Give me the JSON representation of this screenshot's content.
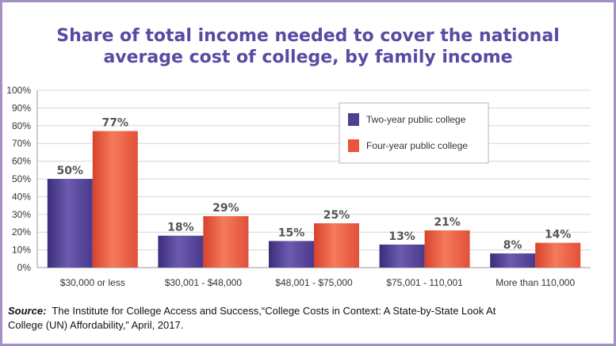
{
  "chart_data": {
    "type": "bar",
    "title_line1": "Share of total income needed to cover the national",
    "title_line2": "average cost of college, by family income",
    "categories": [
      "$30,000 or less",
      "$30,001 - $48,000",
      "$48,001 - $75,000",
      "$75,001 - 110,001",
      "More than 110,000"
    ],
    "series": [
      {
        "name": "Two-year public college",
        "values": [
          50,
          18,
          15,
          13,
          8
        ],
        "labels": [
          "50%",
          "18%",
          "15%",
          "13%",
          "8%"
        ],
        "color": "#4f3f8f"
      },
      {
        "name": "Four-year public college",
        "values": [
          77,
          29,
          25,
          21,
          14
        ],
        "labels": [
          "77%",
          "29%",
          "25%",
          "21%",
          "14%"
        ],
        "color": "#e8553a"
      }
    ],
    "yticks": [
      "0%",
      "10%",
      "20%",
      "30%",
      "40%",
      "50%",
      "60%",
      "70%",
      "80%",
      "90%",
      "100%"
    ],
    "ylim": [
      0,
      100
    ],
    "grid": true,
    "legend_position": "top-right"
  },
  "source": {
    "label": "Source:",
    "text": "The Institute for College Access and Success,“College Costs in Context: A State-by-State Look At College (UN) Affordability,” April, 2017."
  }
}
